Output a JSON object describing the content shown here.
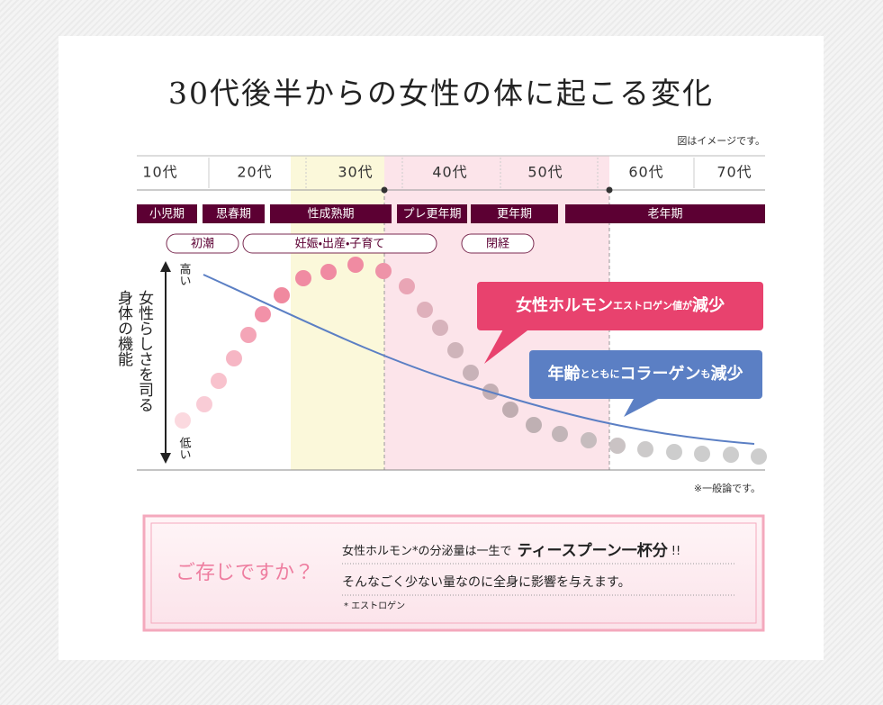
{
  "title": "30代後半からの女性の体に起こる変化",
  "note_top": "図はイメージです。",
  "ages": [
    "10代",
    "20代",
    "30代",
    "40代",
    "50代",
    "60代",
    "70代"
  ],
  "stages": [
    "小児期",
    "思春期",
    "性成熟期",
    "プレ更年期",
    "更年期",
    "老年期"
  ],
  "events": [
    "初潮",
    "妊娠・出産・子育て",
    "閉経"
  ],
  "axis": {
    "high": "高い",
    "low": "低い",
    "label_1": "女性らしさを司る",
    "label_2": "身体の機能"
  },
  "callouts": [
    {
      "parts": [
        "女性ホルモン",
        "エストロゲン値",
        "が",
        "減少"
      ]
    },
    {
      "parts": [
        "年齢",
        "とともに",
        "コラーゲン",
        "も",
        "減少"
      ]
    }
  ],
  "note_bottom": "※一般論です。",
  "info": {
    "heading": "ご存じですか？",
    "line_1": [
      "女性ホルモン*の分泌量は一生で",
      "ティースプーン一杯分",
      "!!"
    ],
    "line_2": "そんなごく少ない量なのに全身に影響を与えます。",
    "footnote": "* エストロゲン"
  }
}
